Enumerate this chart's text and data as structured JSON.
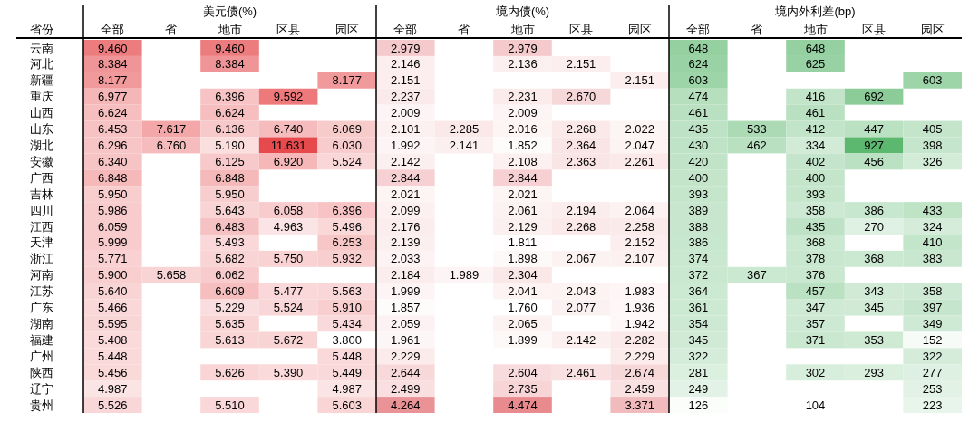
{
  "chart_data": [
    {
      "type": "heatmap",
      "title": "美元债(%)",
      "ylabel": "省份",
      "color": "#e64a4d",
      "categories": [
        "全部",
        "省",
        "地市",
        "区县",
        "园区"
      ],
      "y_categories": [
        "云南",
        "河北",
        "新疆",
        "重庆",
        "山西",
        "山东",
        "湖北",
        "安徽",
        "广西",
        "吉林",
        "四川",
        "江西",
        "天津",
        "浙江",
        "河南",
        "江苏",
        "广东",
        "湖南",
        "福建",
        "广州",
        "陕西",
        "辽宁",
        "贵州"
      ],
      "cells": [
        [
          9.46,
          null,
          9.46,
          null,
          null
        ],
        [
          8.384,
          null,
          8.384,
          null,
          null
        ],
        [
          8.177,
          null,
          null,
          null,
          8.177
        ],
        [
          6.977,
          null,
          6.396,
          9.592,
          null
        ],
        [
          6.624,
          null,
          6.624,
          null,
          null
        ],
        [
          6.453,
          7.617,
          6.136,
          6.74,
          6.069
        ],
        [
          6.296,
          6.76,
          5.19,
          11.631,
          6.03
        ],
        [
          6.34,
          null,
          6.125,
          6.92,
          5.524
        ],
        [
          6.848,
          null,
          6.848,
          null,
          null
        ],
        [
          5.95,
          null,
          5.95,
          null,
          null
        ],
        [
          5.986,
          null,
          5.643,
          6.058,
          6.396
        ],
        [
          6.059,
          null,
          6.483,
          4.963,
          5.496
        ],
        [
          5.999,
          null,
          5.493,
          null,
          6.253
        ],
        [
          5.771,
          null,
          5.682,
          5.75,
          5.932
        ],
        [
          5.9,
          5.658,
          6.062,
          null,
          null
        ],
        [
          5.64,
          null,
          6.609,
          5.477,
          5.563
        ],
        [
          5.466,
          null,
          5.229,
          5.524,
          5.91
        ],
        [
          5.595,
          null,
          5.635,
          null,
          5.434
        ],
        [
          5.408,
          null,
          5.613,
          5.672,
          3.8
        ],
        [
          5.448,
          null,
          null,
          null,
          5.448
        ],
        [
          5.456,
          null,
          5.626,
          5.39,
          5.449
        ],
        [
          4.987,
          null,
          null,
          null,
          4.987
        ],
        [
          5.526,
          null,
          5.51,
          null,
          5.603
        ]
      ],
      "cell_labels": [
        [
          "9.460",
          null,
          "9.460",
          null,
          null
        ],
        [
          "8.384",
          null,
          "8.384",
          null,
          null
        ],
        [
          "8.177",
          null,
          null,
          null,
          "8.177"
        ],
        [
          "6.977",
          null,
          "6.396",
          "9.592",
          null
        ],
        [
          "6.624",
          null,
          "6.624",
          null,
          null
        ],
        [
          "6.453",
          "7.617",
          "6.136",
          "6.740",
          "6.069"
        ],
        [
          "6.296",
          "6.760",
          "5.190",
          "11.631",
          "6.030"
        ],
        [
          "6.340",
          null,
          "6.125",
          "6.920",
          "5.524"
        ],
        [
          "6.848",
          null,
          "6.848",
          null,
          null
        ],
        [
          "5.950",
          null,
          "5.950",
          null,
          null
        ],
        [
          "5.986",
          null,
          "5.643",
          "6.058",
          "6.396"
        ],
        [
          "6.059",
          null,
          "6.483",
          "4.963",
          "5.496"
        ],
        [
          "5.999",
          null,
          "5.493",
          null,
          "6.253"
        ],
        [
          "5.771",
          null,
          "5.682",
          "5.750",
          "5.932"
        ],
        [
          "5.900",
          "5.658",
          "6.062",
          null,
          null
        ],
        [
          "5.640",
          null,
          "6.609",
          "5.477",
          "5.563"
        ],
        [
          "5.466",
          null,
          "5.229",
          "5.524",
          "5.910"
        ],
        [
          "5.595",
          null,
          "5.635",
          null,
          "5.434"
        ],
        [
          "5.408",
          null,
          "5.613",
          "5.672",
          "3.800"
        ],
        [
          "5.448",
          null,
          null,
          null,
          "5.448"
        ],
        [
          "5.456",
          null,
          "5.626",
          "5.390",
          "5.449"
        ],
        [
          "4.987",
          null,
          null,
          null,
          "4.987"
        ],
        [
          "5.526",
          null,
          "5.510",
          null,
          "5.603"
        ]
      ]
    },
    {
      "type": "heatmap",
      "title": "境内债(%)",
      "color": "#e88a8e",
      "tick_labels": "x",
      "categories": [
        "全部",
        "省",
        "地市",
        "区县",
        "园区"
      ],
      "y_categories": [
        "云南",
        "河北",
        "新疆",
        "重庆",
        "山西",
        "山东",
        "湖北",
        "安徽",
        "广西",
        "吉林",
        "四川",
        "江西",
        "天津",
        "浙江",
        "河南",
        "江苏",
        "广东",
        "湖南",
        "福建",
        "广州",
        "陕西",
        "辽宁",
        "贵州"
      ],
      "cells": [
        [
          2.979,
          null,
          2.979,
          null,
          null
        ],
        [
          2.146,
          null,
          2.136,
          2.151,
          null
        ],
        [
          2.151,
          null,
          null,
          null,
          2.151
        ],
        [
          2.237,
          null,
          2.231,
          2.67,
          null
        ],
        [
          2.009,
          null,
          2.009,
          null,
          null
        ],
        [
          2.101,
          2.285,
          2.016,
          2.268,
          2.022
        ],
        [
          1.992,
          2.141,
          1.852,
          2.364,
          2.047
        ],
        [
          2.142,
          null,
          2.108,
          2.363,
          2.261
        ],
        [
          2.844,
          null,
          2.844,
          null,
          null
        ],
        [
          2.021,
          null,
          2.021,
          null,
          null
        ],
        [
          2.099,
          null,
          2.061,
          2.194,
          2.064
        ],
        [
          2.176,
          null,
          2.129,
          2.268,
          2.258
        ],
        [
          2.139,
          null,
          1.811,
          null,
          2.152
        ],
        [
          2.033,
          null,
          1.898,
          2.067,
          2.107
        ],
        [
          2.184,
          1.989,
          2.304,
          null,
          null
        ],
        [
          1.999,
          null,
          2.041,
          2.043,
          1.983
        ],
        [
          1.857,
          null,
          1.76,
          2.077,
          1.936
        ],
        [
          2.059,
          null,
          2.065,
          null,
          1.942
        ],
        [
          1.961,
          null,
          1.899,
          2.142,
          2.282
        ],
        [
          2.229,
          null,
          null,
          null,
          2.229
        ],
        [
          2.644,
          null,
          2.604,
          2.461,
          2.674
        ],
        [
          2.499,
          null,
          2.735,
          null,
          2.459
        ],
        [
          4.264,
          null,
          4.474,
          null,
          3.371
        ]
      ],
      "cell_labels": [
        [
          "2.979",
          null,
          "2.979",
          null,
          null
        ],
        [
          "2.146",
          null,
          "2.136",
          "2.151",
          null
        ],
        [
          "2.151",
          null,
          null,
          null,
          "2.151"
        ],
        [
          "2.237",
          null,
          "2.231",
          "2.670",
          null
        ],
        [
          "2.009",
          null,
          "2.009",
          null,
          null
        ],
        [
          "2.101",
          "2.285",
          "2.016",
          "2.268",
          "2.022"
        ],
        [
          "1.992",
          "2.141",
          "1.852",
          "2.364",
          "2.047"
        ],
        [
          "2.142",
          null,
          "2.108",
          "2.363",
          "2.261"
        ],
        [
          "2.844",
          null,
          "2.844",
          null,
          null
        ],
        [
          "2.021",
          null,
          "2.021",
          null,
          null
        ],
        [
          "2.099",
          null,
          "2.061",
          "2.194",
          "2.064"
        ],
        [
          "2.176",
          null,
          "2.129",
          "2.268",
          "2.258"
        ],
        [
          "2.139",
          null,
          "1.811",
          null,
          "2.152"
        ],
        [
          "2.033",
          null,
          "1.898",
          "2.067",
          "2.107"
        ],
        [
          "2.184",
          "1.989",
          "2.304",
          null,
          null
        ],
        [
          "1.999",
          null,
          "2.041",
          "2.043",
          "1.983"
        ],
        [
          "1.857",
          null,
          "1.760",
          "2.077",
          "1.936"
        ],
        [
          "2.059",
          null,
          "2.065",
          null,
          "1.942"
        ],
        [
          "1.961",
          null,
          "1.899",
          "2.142",
          "2.282"
        ],
        [
          "2.229",
          null,
          null,
          null,
          "2.229"
        ],
        [
          "2.644",
          null,
          "2.604",
          "2.461",
          "2.674"
        ],
        [
          "2.499",
          null,
          "2.735",
          null,
          "2.459"
        ],
        [
          "4.264",
          null,
          "4.474",
          null,
          "3.371"
        ]
      ]
    },
    {
      "type": "heatmap",
      "title": "境内外利差(bp)",
      "color": "#5db86f",
      "tick_labels": "x",
      "data_labels": true,
      "categories": [
        "全部",
        "省",
        "地市",
        "区县",
        "园区"
      ],
      "y_categories": [
        "云南",
        "河北",
        "新疆",
        "重庆",
        "山西",
        "山东",
        "湖北",
        "安徽",
        "广西",
        "吉林",
        "四川",
        "江西",
        "天津",
        "浙江",
        "河南",
        "江苏",
        "广东",
        "湖南",
        "福建",
        "广州",
        "陕西",
        "辽宁",
        "贵州"
      ],
      "cells": [
        [
          648,
          null,
          648,
          null,
          null
        ],
        [
          624,
          null,
          625,
          null,
          null
        ],
        [
          603,
          null,
          null,
          null,
          603
        ],
        [
          474,
          null,
          416,
          692,
          null
        ],
        [
          461,
          null,
          461,
          null,
          null
        ],
        [
          435,
          533,
          412,
          447,
          405
        ],
        [
          430,
          462,
          334,
          927,
          398
        ],
        [
          420,
          null,
          402,
          456,
          326
        ],
        [
          400,
          null,
          400,
          null,
          null
        ],
        [
          393,
          null,
          393,
          null,
          null
        ],
        [
          389,
          null,
          358,
          386,
          433
        ],
        [
          388,
          null,
          435,
          270,
          324
        ],
        [
          386,
          null,
          368,
          null,
          410
        ],
        [
          374,
          null,
          378,
          368,
          383
        ],
        [
          372,
          367,
          376,
          null,
          null
        ],
        [
          364,
          null,
          457,
          343,
          358
        ],
        [
          361,
          null,
          347,
          345,
          397
        ],
        [
          354,
          null,
          357,
          null,
          349
        ],
        [
          345,
          null,
          371,
          353,
          152
        ],
        [
          322,
          null,
          null,
          null,
          322
        ],
        [
          281,
          null,
          302,
          293,
          277
        ],
        [
          249,
          null,
          null,
          null,
          253
        ],
        [
          126,
          null,
          104,
          null,
          223
        ]
      ]
    }
  ]
}
